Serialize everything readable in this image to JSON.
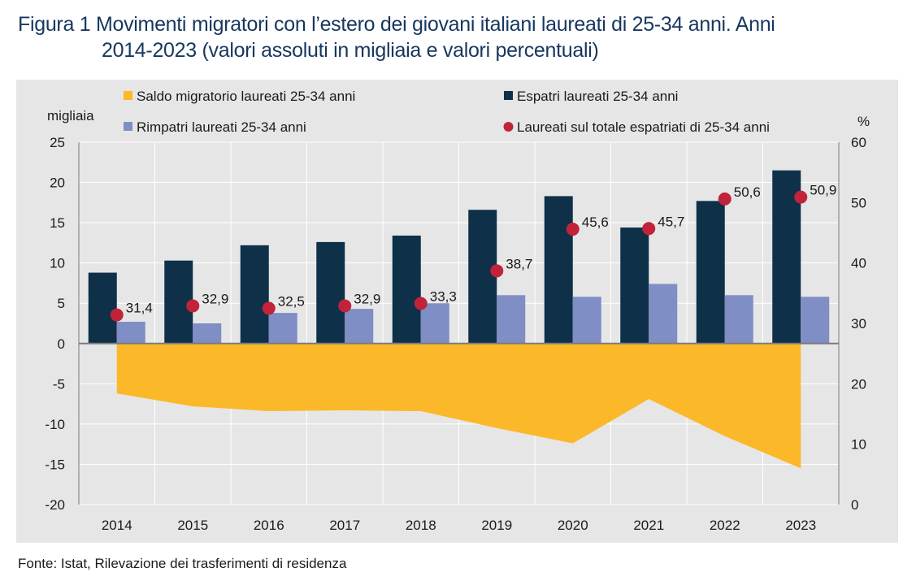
{
  "title": {
    "prefix": "Figura 1",
    "line1": "Movimenti migratori con l’estero dei giovani italiani laureati di 25-34 anni. Anni",
    "line2_main": "2014-2023",
    "line2_sub": "(valori assoluti in migliaia e valori percentuali)"
  },
  "source": "Fonte: Istat, Rilevazione dei trasferimenti di residenza",
  "colors": {
    "espatri": "#0f3049",
    "rimpatri": "#7f8ec4",
    "saldo": "#fbb829",
    "laureati_pct": "#c1233a",
    "panel": "#e6e6e6"
  },
  "chart_data": {
    "type": "bar",
    "categories": [
      "2014",
      "2015",
      "2016",
      "2017",
      "2018",
      "2019",
      "2020",
      "2021",
      "2022",
      "2023"
    ],
    "y_left_label": "migliaia",
    "y_right_label": "%",
    "ylim_left": [
      -20,
      25
    ],
    "ylim_right": [
      0,
      60
    ],
    "left_ticks": [
      "25",
      "20",
      "15",
      "10",
      "5",
      "0",
      "-5",
      "-10",
      "-15",
      "-20"
    ],
    "right_ticks": [
      "60",
      "50",
      "40",
      "30",
      "20",
      "10",
      "0"
    ],
    "legend": [
      "Saldo migratorio laureati 25-34 anni",
      "Espatri laureati 25-34 anni",
      "Rimpatri laureati 25-34 anni",
      "Laureati sul totale espatriati di 25-34 anni"
    ],
    "series": [
      {
        "name": "Saldo migratorio laureati 25-34 anni",
        "type": "area",
        "axis": "left",
        "values": [
          -6.2,
          -7.8,
          -8.4,
          -8.3,
          -8.4,
          -10.5,
          -12.4,
          -6.9,
          -11.5,
          -15.5
        ]
      },
      {
        "name": "Espatri laureati 25-34 anni",
        "type": "bar",
        "axis": "left",
        "values": [
          8.8,
          10.3,
          12.2,
          12.6,
          13.4,
          16.6,
          18.3,
          14.4,
          17.7,
          21.5
        ]
      },
      {
        "name": "Rimpatri laureati 25-34 anni",
        "type": "bar",
        "axis": "left",
        "values": [
          2.7,
          2.5,
          3.8,
          4.3,
          5.0,
          6.0,
          5.8,
          7.4,
          6.0,
          5.8
        ]
      },
      {
        "name": "Laureati sul totale espatriati di 25-34 anni",
        "type": "scatter",
        "axis": "right",
        "values": [
          31.4,
          32.9,
          32.5,
          32.9,
          33.3,
          38.7,
          45.6,
          45.7,
          50.6,
          50.9
        ],
        "labels": [
          "31,4",
          "32,9",
          "32,5",
          "32,9",
          "33,3",
          "38,7",
          "45,6",
          "45,7",
          "50,6",
          "50,9"
        ]
      }
    ]
  }
}
